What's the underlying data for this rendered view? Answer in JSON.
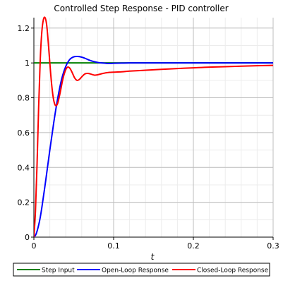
{
  "chart_data": {
    "type": "line",
    "title": "Controlled Step Response - PID controller",
    "xlabel": "t",
    "ylabel": "",
    "xlim": [
      0,
      0.3
    ],
    "ylim": [
      0,
      1.26
    ],
    "x_ticks": [
      0,
      0.1,
      0.2,
      0.3
    ],
    "x_tick_labels": [
      "0",
      "0.1",
      "0.2",
      "0.3"
    ],
    "y_ticks": [
      0,
      0.2,
      0.4,
      0.6,
      0.8,
      1.0,
      1.2
    ],
    "y_tick_labels": [
      "0",
      "0.2",
      "0.4",
      "0.6",
      "0.8",
      "1",
      "1.2"
    ],
    "grid": true,
    "minor_grid": true,
    "legend_position": "bottom",
    "series": [
      {
        "name": "Step Input",
        "color": "#008000",
        "x": [
          0,
          0.3
        ],
        "y": [
          1,
          1
        ]
      },
      {
        "name": "Open-Loop Response",
        "color": "#0000ff",
        "x": [
          0,
          0.003,
          0.007,
          0.01,
          0.015,
          0.02,
          0.025,
          0.03,
          0.035,
          0.04,
          0.045,
          0.05,
          0.055,
          0.06,
          0.065,
          0.07,
          0.075,
          0.08,
          0.085,
          0.09,
          0.095,
          0.1,
          0.11,
          0.12,
          0.14,
          0.17,
          0.2,
          0.25,
          0.3
        ],
        "y": [
          0,
          0.02,
          0.09,
          0.17,
          0.33,
          0.5,
          0.66,
          0.8,
          0.91,
          0.98,
          1.02,
          1.035,
          1.037,
          1.033,
          1.025,
          1.015,
          1.008,
          1.003,
          1.0,
          0.998,
          0.997,
          0.998,
          0.999,
          1.0,
          1.0,
          1.0,
          1.0,
          1.0,
          1.0
        ]
      },
      {
        "name": "Closed-Loop Response",
        "color": "#ff0000",
        "x": [
          0,
          0.002,
          0.004,
          0.006,
          0.008,
          0.01,
          0.012,
          0.014,
          0.016,
          0.018,
          0.02,
          0.022,
          0.024,
          0.026,
          0.028,
          0.03,
          0.033,
          0.036,
          0.039,
          0.042,
          0.045,
          0.048,
          0.051,
          0.054,
          0.057,
          0.06,
          0.064,
          0.068,
          0.072,
          0.076,
          0.08,
          0.085,
          0.09,
          0.095,
          0.1,
          0.11,
          0.12,
          0.14,
          0.16,
          0.18,
          0.2,
          0.22,
          0.25,
          0.28,
          0.3
        ],
        "y": [
          0,
          0.15,
          0.42,
          0.75,
          1.02,
          1.18,
          1.25,
          1.26,
          1.22,
          1.12,
          1.0,
          0.89,
          0.81,
          0.765,
          0.755,
          0.77,
          0.83,
          0.9,
          0.95,
          0.975,
          0.97,
          0.945,
          0.915,
          0.9,
          0.905,
          0.92,
          0.937,
          0.94,
          0.935,
          0.93,
          0.932,
          0.938,
          0.943,
          0.946,
          0.947,
          0.949,
          0.953,
          0.958,
          0.963,
          0.968,
          0.972,
          0.976,
          0.98,
          0.984,
          0.986
        ]
      }
    ]
  }
}
